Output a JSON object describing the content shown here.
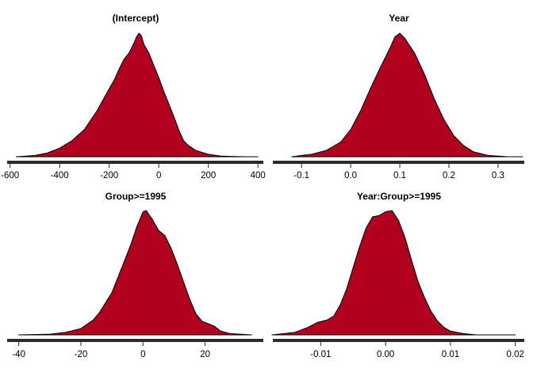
{
  "chart_data": [
    {
      "type": "area",
      "title": "(Intercept)",
      "xlim": [
        -615,
        425
      ],
      "ticks": [
        -600,
        -400,
        -200,
        0,
        200,
        400
      ],
      "tick_labels": [
        "-600",
        "-400",
        "-200",
        "0",
        "200",
        "400"
      ],
      "fill": "#b2001f",
      "x": [
        -575,
        -500,
        -450,
        -400,
        -350,
        -300,
        -250,
        -200,
        -180,
        -160,
        -140,
        -120,
        -100,
        -90,
        -80,
        -70,
        -60,
        -40,
        -20,
        0,
        20,
        40,
        60,
        80,
        100,
        120,
        150,
        200,
        250,
        300,
        350,
        400
      ],
      "density": [
        0.0,
        0.01,
        0.03,
        0.07,
        0.13,
        0.22,
        0.37,
        0.55,
        0.62,
        0.71,
        0.79,
        0.84,
        0.92,
        0.97,
        1.0,
        0.98,
        0.91,
        0.84,
        0.74,
        0.64,
        0.53,
        0.43,
        0.33,
        0.22,
        0.13,
        0.09,
        0.05,
        0.02,
        0.005,
        0.002,
        0.0,
        0.0
      ]
    },
    {
      "type": "area",
      "title": "Year",
      "xlim": [
        -0.16,
        0.355
      ],
      "ticks": [
        -0.1,
        0.0,
        0.1,
        0.2,
        0.3
      ],
      "tick_labels": [
        "-0.1",
        "0.0",
        "0.1",
        "0.2",
        "0.3"
      ],
      "fill": "#b2001f",
      "x": [
        -0.12,
        -0.08,
        -0.05,
        -0.02,
        0.0,
        0.02,
        0.04,
        0.06,
        0.08,
        0.09,
        0.1,
        0.11,
        0.13,
        0.15,
        0.17,
        0.19,
        0.21,
        0.23,
        0.25,
        0.28,
        0.32,
        0.35
      ],
      "density": [
        0.0,
        0.02,
        0.05,
        0.12,
        0.22,
        0.37,
        0.55,
        0.72,
        0.88,
        0.97,
        1.0,
        0.96,
        0.84,
        0.67,
        0.47,
        0.3,
        0.17,
        0.09,
        0.04,
        0.01,
        0.0,
        0.0
      ]
    },
    {
      "type": "area",
      "title": "Group>=1995",
      "xlim": [
        -44,
        39
      ],
      "ticks": [
        -40,
        -20,
        0,
        20
      ],
      "tick_labels": [
        "-40",
        "-20",
        "0",
        "20"
      ],
      "fill": "#b2001f",
      "x": [
        -40,
        -30,
        -25,
        -20,
        -16,
        -14,
        -10,
        -7,
        -4,
        -2,
        0,
        1,
        3,
        5,
        7,
        9,
        11,
        13,
        15,
        17,
        19,
        21,
        23,
        25,
        28,
        35
      ],
      "density": [
        0.0,
        0.005,
        0.02,
        0.05,
        0.12,
        0.18,
        0.34,
        0.53,
        0.72,
        0.87,
        0.99,
        1.0,
        0.93,
        0.84,
        0.8,
        0.7,
        0.57,
        0.43,
        0.29,
        0.17,
        0.11,
        0.09,
        0.07,
        0.03,
        0.01,
        0.0
      ]
    },
    {
      "type": "area",
      "title": "Year:Group>=1995",
      "xlim": [
        -0.0175,
        0.0215
      ],
      "ticks": [
        -0.01,
        0.0,
        0.01,
        0.02
      ],
      "tick_labels": [
        "-0.01",
        "0.00",
        "0.01",
        "0.02"
      ],
      "fill": "#b2001f",
      "x": [
        -0.0175,
        -0.014,
        -0.012,
        -0.0105,
        -0.009,
        -0.008,
        -0.007,
        -0.006,
        -0.005,
        -0.004,
        -0.003,
        -0.002,
        -0.001,
        0.0,
        0.001,
        0.002,
        0.003,
        0.004,
        0.005,
        0.006,
        0.007,
        0.008,
        0.009,
        0.01,
        0.012,
        0.014,
        0.016,
        0.02
      ],
      "density": [
        0.0,
        0.02,
        0.06,
        0.1,
        0.12,
        0.15,
        0.24,
        0.37,
        0.54,
        0.71,
        0.86,
        0.95,
        0.96,
        0.99,
        1.0,
        0.92,
        0.78,
        0.6,
        0.43,
        0.3,
        0.19,
        0.11,
        0.06,
        0.03,
        0.01,
        0.0,
        0.0,
        0.0
      ]
    }
  ]
}
